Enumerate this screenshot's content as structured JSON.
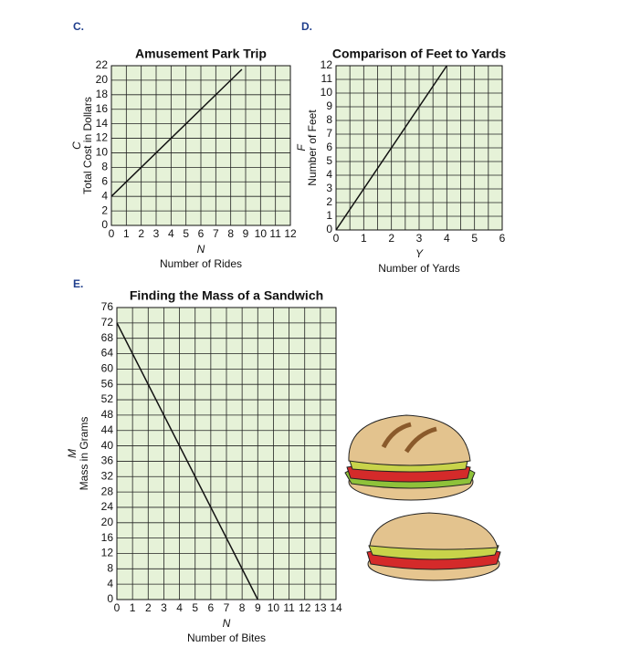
{
  "chart_data": [
    {
      "type": "line",
      "label": "C.",
      "title": "Amusement Park Trip",
      "xvar": "N",
      "xlabel": "Number of Rides",
      "yvar": "C",
      "ylabel": "Total Cost in Dollars",
      "x": [
        0,
        8.75
      ],
      "values": [
        4,
        21.5
      ],
      "color": "#111111",
      "xlim": [
        0,
        12
      ],
      "xticks": [
        0,
        1,
        2,
        3,
        4,
        5,
        6,
        7,
        8,
        9,
        10,
        11,
        12
      ],
      "ylim": [
        0,
        22
      ],
      "yticks": [
        0,
        2,
        4,
        6,
        8,
        10,
        12,
        14,
        16,
        18,
        20,
        22
      ],
      "grid": true
    },
    {
      "type": "line",
      "label": "D.",
      "title": "Comparison of Feet to Yards",
      "xvar": "Y",
      "xlabel": "Number of Yards",
      "yvar": "F",
      "ylabel": "Number of Feet",
      "x": [
        0,
        4
      ],
      "values": [
        0,
        12
      ],
      "color": "#111111",
      "xlim": [
        0,
        6
      ],
      "xticks": [
        0,
        1,
        2,
        3,
        4,
        5,
        6
      ],
      "x_grid_subdivisions": 2,
      "ylim": [
        0,
        12
      ],
      "yticks": [
        0,
        1,
        2,
        3,
        4,
        5,
        6,
        7,
        8,
        9,
        10,
        11,
        12
      ],
      "grid": true
    },
    {
      "type": "line",
      "label": "E.",
      "title": "Finding the Mass of a Sandwich",
      "xvar": "N",
      "xlabel": "Number of Bites",
      "yvar": "M",
      "ylabel": "Mass in Grams",
      "x": [
        0,
        9
      ],
      "values": [
        72,
        0
      ],
      "color": "#111111",
      "xlim": [
        0,
        14
      ],
      "xticks": [
        0,
        1,
        2,
        3,
        4,
        5,
        6,
        7,
        8,
        9,
        10,
        11,
        12,
        13,
        14
      ],
      "ylim": [
        0,
        76
      ],
      "yticks": [
        0,
        4,
        8,
        12,
        16,
        20,
        24,
        28,
        32,
        36,
        40,
        44,
        48,
        52,
        56,
        60,
        64,
        68,
        72,
        76
      ],
      "grid": true
    }
  ]
}
